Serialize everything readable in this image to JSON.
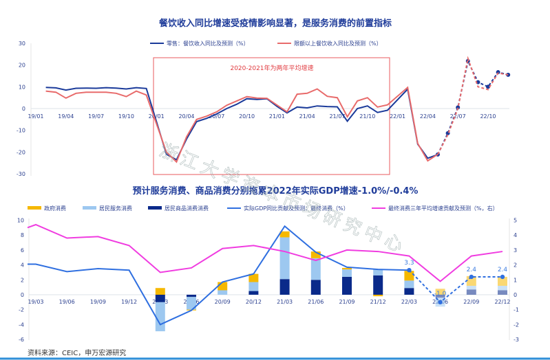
{
  "chart_data": [
    {
      "type": "line",
      "title": "餐饮收入同比增速受疫情影响显著，是服务消费的前置指标",
      "ylim": [
        -30,
        30
      ],
      "yticks": [
        30,
        20,
        10,
        0,
        -10,
        -20,
        -30
      ],
      "xticks": [
        "19/01",
        "19/04",
        "19/07",
        "19/10",
        "20/01",
        "20/04",
        "20/07",
        "20/10",
        "21/01",
        "21/04",
        "21/07",
        "21/10",
        "22/01",
        "22/04",
        "22/07",
        "22/10"
      ],
      "grid": false,
      "legend": "top",
      "annotation": "2020-2021年为两年平均增速",
      "forecast_from": "22/05",
      "x": [
        "19/02",
        "19/03",
        "19/04",
        "19/05",
        "19/06",
        "19/07",
        "19/08",
        "19/09",
        "19/10",
        "19/11",
        "19/12",
        "20/01",
        "20/02",
        "20/03",
        "20/04",
        "20/05",
        "20/06",
        "20/07",
        "20/08",
        "20/09",
        "20/10",
        "20/11",
        "20/12",
        "21/01",
        "21/02",
        "21/03",
        "21/04",
        "21/05",
        "21/06",
        "21/07",
        "21/08",
        "21/09",
        "21/10",
        "21/11",
        "21/12",
        "22/01",
        "22/02",
        "22/03",
        "22/04",
        "22/05",
        "22/06",
        "22/07",
        "22/08",
        "22/09",
        "22/10",
        "22/11",
        "22/12"
      ],
      "series": [
        {
          "name": "零售：餐饮收入同比及预测（%）",
          "color": "#1a3a9a",
          "values": [
            9.7,
            9.5,
            8.5,
            9.3,
            9.4,
            9.3,
            9.6,
            9.4,
            9.0,
            9.6,
            9.2,
            null,
            -21,
            -23.5,
            -14,
            -6,
            -4.5,
            -2.5,
            0,
            2,
            4.5,
            4.2,
            4.5,
            1,
            -2,
            0.7,
            0.3,
            1.2,
            0.9,
            0.8,
            -5.8,
            0,
            1.2,
            -1.8,
            -0.8,
            null,
            8.9,
            -16.3,
            -22.8,
            -21.1,
            -11.3,
            0.5,
            21.8,
            12.1,
            10,
            16.7,
            15.5
          ]
        },
        {
          "name": "限额以上餐饮收入同比及预测（%）",
          "color": "#e86a6a",
          "values": [
            8,
            7.5,
            4.8,
            7,
            7.5,
            7.5,
            7.5,
            7,
            5.5,
            8,
            6.2,
            null,
            -20,
            -24.5,
            -13,
            -5,
            -3.5,
            -1.5,
            1.5,
            3.5,
            5.5,
            4.8,
            4.7,
            1.6,
            -1.5,
            6.6,
            7,
            9,
            5.6,
            5,
            -3.8,
            3.5,
            5,
            0.7,
            1.7,
            null,
            9.7,
            -16,
            -24,
            -21,
            -12,
            0,
            23,
            10,
            8.7,
            16.3,
            15.5
          ]
        }
      ]
    },
    {
      "type": "bar",
      "title": "预计服务消费、商品消费分别拖累2022年实际GDP增速-1.0%/-0.4%",
      "categories": [
        "19/03",
        "19/06",
        "19/09",
        "19/12",
        "20/03",
        "20/06",
        "20/09",
        "20/12",
        "21/03",
        "21/06",
        "21/09",
        "21/12",
        "22/03",
        "22/06",
        "22/09",
        "22/12"
      ],
      "ylim": [
        -6,
        10
      ],
      "yticks": [
        10,
        8,
        6,
        4,
        2,
        0,
        -2,
        -4,
        -6
      ],
      "y2lim": [
        -3,
        5
      ],
      "y2ticks": [
        5,
        4,
        3,
        2,
        1,
        0,
        -1,
        -2,
        -3
      ],
      "legend": "top",
      "forecast_from": "22/06",
      "stacked_series": [
        {
          "name": "政府消费",
          "color": "#f5b800",
          "values": [
            null,
            null,
            null,
            null,
            0.9,
            -0.1,
            1.1,
            1.1,
            0.8,
            0.9,
            0.2,
            -0.2,
            1.3,
            0.8,
            1.3,
            1.2
          ]
        },
        {
          "name": "居民服务消费",
          "color": "#9dc8f0",
          "values": [
            null,
            null,
            null,
            null,
            -3.9,
            -1.7,
            0.6,
            1.2,
            5.6,
            2.9,
            1.0,
            0.8,
            1.0,
            -1.2,
            0.5,
            0.6
          ]
        },
        {
          "name": "居民商品消费消费",
          "color": "#0a2a8a",
          "values": [
            null,
            null,
            null,
            null,
            -1.0,
            -0.3,
            0,
            0.5,
            2.1,
            2.0,
            2.4,
            2.6,
            0.9,
            -0.4,
            0.7,
            0.6
          ]
        }
      ],
      "line_series": [
        {
          "name": "实际GDP同比贡献及预测：最终消费（%）",
          "color": "#2f6fe0",
          "axis": "left",
          "values": [
            4.1,
            3.1,
            3.5,
            3.3,
            -4.0,
            -2.1,
            1.7,
            2.8,
            9.2,
            5.7,
            3.7,
            3.4,
            3.3,
            -1.0,
            2.4,
            2.4
          ],
          "data_labels": {
            "22/03": "3.3",
            "22/06": "-1.0",
            "22/09": "2.4",
            "22/12": "2.4"
          }
        },
        {
          "name": "最终消费三年平均增速贡献及预测（%，右）",
          "color": "#f03ce0",
          "axis": "right",
          "values": [
            4.7,
            3.8,
            3.9,
            3.3,
            1.5,
            1.8,
            3.1,
            3.3,
            2.9,
            2.3,
            3.0,
            2.9,
            2.6,
            0.9,
            2.6,
            2.9
          ]
        }
      ]
    }
  ],
  "source": "资料来源：CEIC，申万宏源研究",
  "watermark": "浙江大学资本市场研究中心"
}
